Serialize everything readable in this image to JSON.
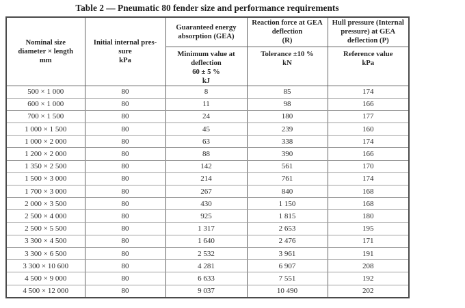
{
  "table": {
    "title": "Table 2 — Pneumatic 80 fender size and performance requirements",
    "header": {
      "nominal_size": {
        "lines": [
          "Nominal size",
          "diameter × length",
          "mm"
        ]
      },
      "initial_pressure": {
        "lines": [
          "Initial internal pres-",
          "sure",
          "kPa"
        ]
      },
      "gea": {
        "top": [
          "Guaranteed energy",
          "absorption (GEA)"
        ],
        "sub": [
          "Minimum value at",
          "deflection",
          "60 ± 5 %",
          "kJ"
        ]
      },
      "reaction_force": {
        "top": [
          "Reaction force at GEA",
          "deflection",
          "(R)"
        ],
        "sub": [
          "Tolerance ±10 %",
          "kN"
        ]
      },
      "hull_pressure": {
        "top": [
          "Hull pressure (Internal",
          "pressure) at GEA",
          "deflection (P)"
        ],
        "sub": [
          "Reference value",
          "kPa"
        ]
      }
    },
    "rows": [
      [
        "500 × 1 000",
        "80",
        "8",
        "85",
        "174"
      ],
      [
        "600 × 1 000",
        "80",
        "11",
        "98",
        "166"
      ],
      [
        "700 × 1 500",
        "80",
        "24",
        "180",
        "177"
      ],
      [
        "1 000 × 1 500",
        "80",
        "45",
        "239",
        "160"
      ],
      [
        "1 000 × 2 000",
        "80",
        "63",
        "338",
        "174"
      ],
      [
        "1 200 × 2 000",
        "80",
        "88",
        "390",
        "166"
      ],
      [
        "1 350 × 2 500",
        "80",
        "142",
        "561",
        "170"
      ],
      [
        "1 500 × 3 000",
        "80",
        "214",
        "761",
        "174"
      ],
      [
        "1 700 × 3 000",
        "80",
        "267",
        "840",
        "168"
      ],
      [
        "2 000 × 3 500",
        "80",
        "430",
        "1 150",
        "168"
      ],
      [
        "2 500 × 4 000",
        "80",
        "925",
        "1 815",
        "180"
      ],
      [
        "2 500 × 5 500",
        "80",
        "1 317",
        "2 653",
        "195"
      ],
      [
        "3 300 × 4 500",
        "80",
        "1 640",
        "2 476",
        "171"
      ],
      [
        "3 300 × 6 500",
        "80",
        "2 532",
        "3 961",
        "191"
      ],
      [
        "3 300 × 10 600",
        "80",
        "4 281",
        "6 907",
        "208"
      ],
      [
        "4 500 × 9 000",
        "80",
        "6 633",
        "7 551",
        "192"
      ],
      [
        "4 500 × 12 000",
        "80",
        "9 037",
        "10 490",
        "202"
      ]
    ],
    "colors": {
      "border_outer": "#4a4a4a",
      "border_vertical": "#5e5e5e",
      "border_row": "#9c9c9c",
      "text": "#262626"
    }
  }
}
